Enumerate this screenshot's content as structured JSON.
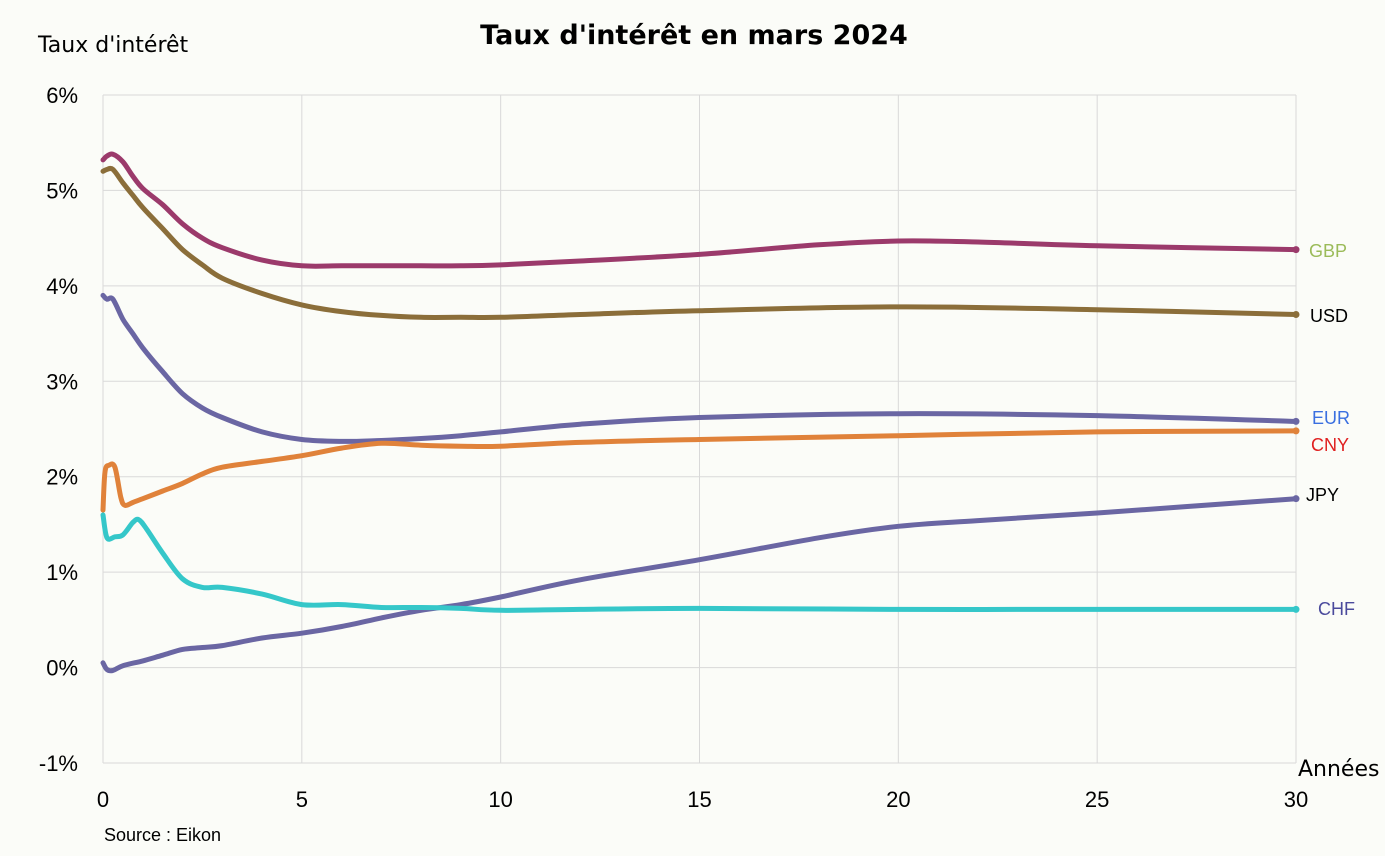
{
  "chart_data": {
    "type": "line",
    "title": "Taux d'intérêt en mars 2024",
    "ylabel": "Taux d'intérêt",
    "xlabel": "Années",
    "source": "Source : Eikon",
    "xlim": [
      0,
      30
    ],
    "ylim": [
      -1,
      6
    ],
    "x_ticks": [
      0,
      5,
      10,
      15,
      20,
      25,
      30
    ],
    "y_ticks": [
      {
        "value": 6,
        "label": "6%"
      },
      {
        "value": 5,
        "label": "5%"
      },
      {
        "value": 4,
        "label": "4%"
      },
      {
        "value": 3,
        "label": "3%"
      },
      {
        "value": 2,
        "label": "2%"
      },
      {
        "value": 1,
        "label": "1%"
      },
      {
        "value": 0,
        "label": "0%"
      },
      {
        "value": -1,
        "label": "-1%"
      }
    ],
    "grid": true,
    "series": [
      {
        "name": "GBP",
        "color": "#9b3a6b",
        "label_color": "#9bbb59",
        "points": [
          [
            0,
            5.32
          ],
          [
            0.1,
            5.36
          ],
          [
            0.25,
            5.38
          ],
          [
            0.5,
            5.3
          ],
          [
            0.75,
            5.15
          ],
          [
            1,
            5.02
          ],
          [
            1.5,
            4.85
          ],
          [
            2,
            4.65
          ],
          [
            2.5,
            4.5
          ],
          [
            3,
            4.4
          ],
          [
            4,
            4.27
          ],
          [
            5,
            4.21
          ],
          [
            6,
            4.21
          ],
          [
            7,
            4.21
          ],
          [
            8,
            4.21
          ],
          [
            9,
            4.21
          ],
          [
            10,
            4.22
          ],
          [
            12,
            4.26
          ],
          [
            15,
            4.33
          ],
          [
            18,
            4.43
          ],
          [
            20,
            4.47
          ],
          [
            22,
            4.46
          ],
          [
            25,
            4.42
          ],
          [
            30,
            4.38
          ]
        ]
      },
      {
        "name": "USD",
        "color": "#8b6e3a",
        "label_color": "#000000",
        "points": [
          [
            0,
            5.2
          ],
          [
            0.1,
            5.22
          ],
          [
            0.25,
            5.22
          ],
          [
            0.5,
            5.08
          ],
          [
            0.75,
            4.95
          ],
          [
            1,
            4.82
          ],
          [
            1.5,
            4.6
          ],
          [
            2,
            4.38
          ],
          [
            2.5,
            4.22
          ],
          [
            3,
            4.08
          ],
          [
            4,
            3.92
          ],
          [
            5,
            3.8
          ],
          [
            6,
            3.73
          ],
          [
            7,
            3.69
          ],
          [
            8,
            3.67
          ],
          [
            9,
            3.67
          ],
          [
            10,
            3.67
          ],
          [
            12,
            3.7
          ],
          [
            15,
            3.74
          ],
          [
            20,
            3.78
          ],
          [
            25,
            3.75
          ],
          [
            30,
            3.7
          ]
        ]
      },
      {
        "name": "EUR",
        "color": "#6a66a3",
        "label_color": "#3a6fe0",
        "points": [
          [
            0,
            3.9
          ],
          [
            0.1,
            3.86
          ],
          [
            0.25,
            3.86
          ],
          [
            0.5,
            3.65
          ],
          [
            0.75,
            3.5
          ],
          [
            1,
            3.35
          ],
          [
            1.5,
            3.1
          ],
          [
            2,
            2.87
          ],
          [
            2.5,
            2.72
          ],
          [
            3,
            2.62
          ],
          [
            4,
            2.47
          ],
          [
            5,
            2.39
          ],
          [
            6,
            2.37
          ],
          [
            7,
            2.38
          ],
          [
            8,
            2.4
          ],
          [
            9,
            2.43
          ],
          [
            10,
            2.47
          ],
          [
            12,
            2.55
          ],
          [
            15,
            2.62
          ],
          [
            20,
            2.66
          ],
          [
            25,
            2.64
          ],
          [
            30,
            2.58
          ]
        ]
      },
      {
        "name": "CNY",
        "color": "#e0823a",
        "label_color": "#e02020",
        "points": [
          [
            0,
            1.65
          ],
          [
            0.05,
            2.05
          ],
          [
            0.15,
            2.12
          ],
          [
            0.3,
            2.1
          ],
          [
            0.45,
            1.78
          ],
          [
            0.55,
            1.7
          ],
          [
            0.75,
            1.73
          ],
          [
            1,
            1.77
          ],
          [
            1.5,
            1.85
          ],
          [
            2,
            1.93
          ],
          [
            2.5,
            2.03
          ],
          [
            3,
            2.1
          ],
          [
            4,
            2.16
          ],
          [
            5,
            2.22
          ],
          [
            6,
            2.3
          ],
          [
            7,
            2.35
          ],
          [
            8,
            2.33
          ],
          [
            9,
            2.32
          ],
          [
            10,
            2.32
          ],
          [
            12,
            2.36
          ],
          [
            15,
            2.39
          ],
          [
            20,
            2.43
          ],
          [
            25,
            2.47
          ],
          [
            30,
            2.48
          ]
        ]
      },
      {
        "name": "JPY",
        "color": "#6a66a3",
        "label_color": "#000000",
        "points": [
          [
            0,
            0.05
          ],
          [
            0.1,
            -0.02
          ],
          [
            0.25,
            -0.03
          ],
          [
            0.5,
            0.02
          ],
          [
            1,
            0.07
          ],
          [
            1.5,
            0.13
          ],
          [
            2,
            0.19
          ],
          [
            2.5,
            0.21
          ],
          [
            3,
            0.23
          ],
          [
            4,
            0.31
          ],
          [
            5,
            0.36
          ],
          [
            6,
            0.43
          ],
          [
            7,
            0.52
          ],
          [
            8,
            0.6
          ],
          [
            9,
            0.66
          ],
          [
            10,
            0.74
          ],
          [
            12,
            0.92
          ],
          [
            15,
            1.13
          ],
          [
            18,
            1.36
          ],
          [
            20,
            1.48
          ],
          [
            22,
            1.54
          ],
          [
            25,
            1.62
          ],
          [
            30,
            1.77
          ]
        ]
      },
      {
        "name": "CHF",
        "color": "#35c7c9",
        "label_color": "#4a4a9c",
        "points": [
          [
            0,
            1.6
          ],
          [
            0.1,
            1.36
          ],
          [
            0.3,
            1.37
          ],
          [
            0.5,
            1.39
          ],
          [
            0.75,
            1.52
          ],
          [
            0.9,
            1.55
          ],
          [
            1.1,
            1.45
          ],
          [
            1.5,
            1.2
          ],
          [
            2,
            0.93
          ],
          [
            2.5,
            0.84
          ],
          [
            3,
            0.84
          ],
          [
            4,
            0.77
          ],
          [
            5,
            0.66
          ],
          [
            6,
            0.66
          ],
          [
            7,
            0.63
          ],
          [
            8,
            0.63
          ],
          [
            9,
            0.62
          ],
          [
            10,
            0.6
          ],
          [
            12,
            0.61
          ],
          [
            15,
            0.62
          ],
          [
            20,
            0.61
          ],
          [
            25,
            0.61
          ],
          [
            30,
            0.61
          ]
        ]
      }
    ]
  }
}
